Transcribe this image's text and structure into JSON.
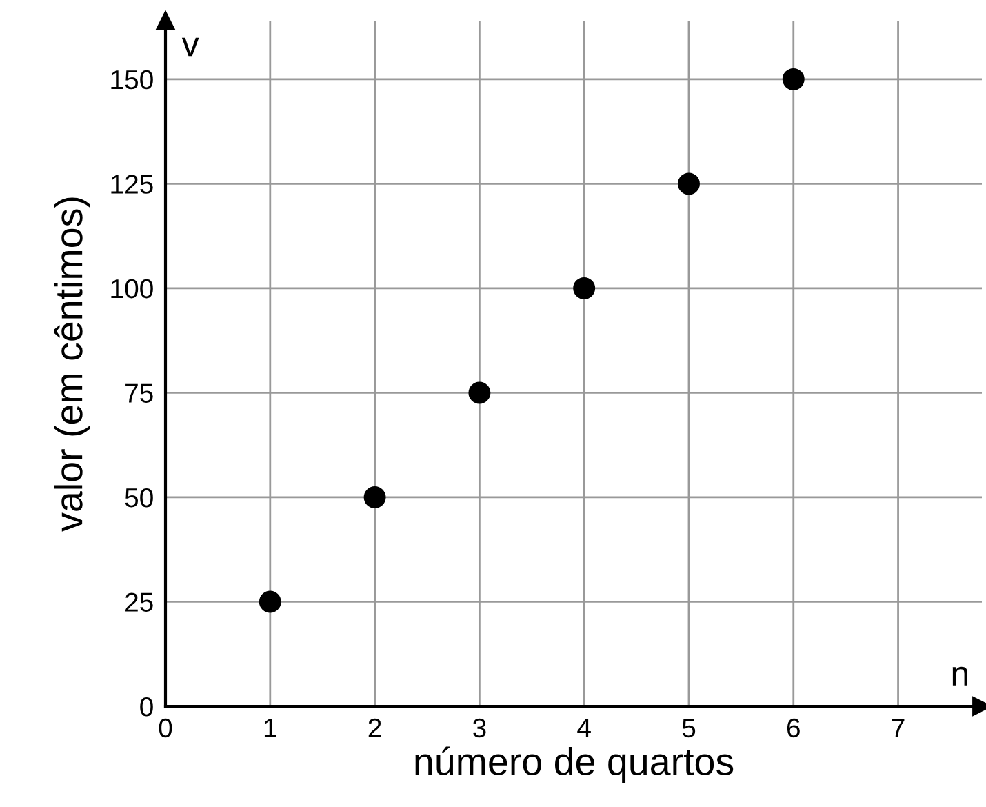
{
  "chart_data": {
    "type": "scatter",
    "xlabel": "número de quartos",
    "ylabel": "valor (em cêntimos)",
    "annotations": [
      "v",
      "n"
    ],
    "x": [
      1,
      2,
      3,
      4,
      5,
      6
    ],
    "series": [
      {
        "color": "#000000",
        "values": [
          25,
          50,
          75,
          100,
          125,
          150
        ]
      }
    ],
    "xlim": [
      0,
      7.8
    ],
    "ylim": [
      0,
      164
    ],
    "xticks": [
      0,
      1,
      2,
      3,
      4,
      5,
      6,
      7
    ],
    "yticks": [
      0,
      25,
      50,
      75,
      100,
      125,
      150
    ],
    "grid": true,
    "marker": "circle"
  }
}
